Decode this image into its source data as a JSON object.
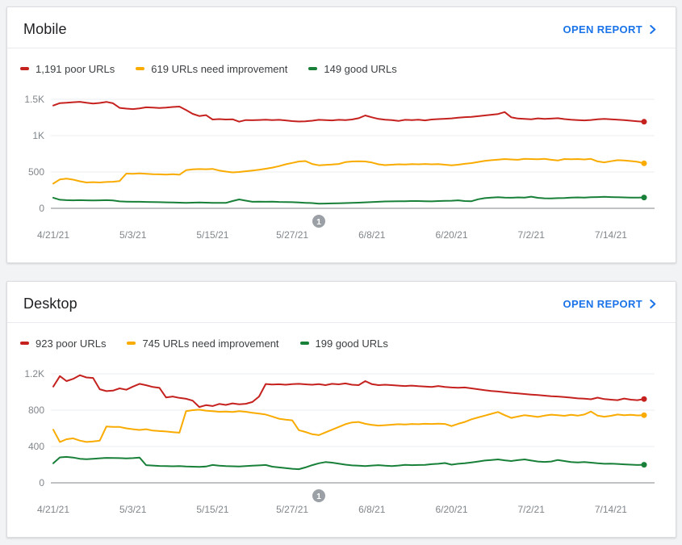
{
  "page": {
    "background": "#f1f3f4"
  },
  "colors": {
    "poor": "#c5221f",
    "needs_improvement": "#f9ab00",
    "good": "#188038",
    "link": "#1a73e8",
    "axis_text": "#80868b",
    "gridline": "#ebedef",
    "baseline": "#80868b",
    "badge": "#9aa0a6"
  },
  "cards": [
    {
      "title": "Mobile",
      "open_report_label": "OPEN REPORT",
      "legend": [
        {
          "label": "1,191 poor URLs",
          "color": "#c5221f"
        },
        {
          "label": "619 URLs need improvement",
          "color": "#f9ab00"
        },
        {
          "label": "149 good URLs",
          "color": "#188038"
        }
      ],
      "chart_data": {
        "type": "line",
        "x_tick_labels": [
          "4/21/21",
          "5/3/21",
          "5/15/21",
          "5/27/21",
          "6/8/21",
          "6/20/21",
          "7/2/21",
          "7/14/21"
        ],
        "x_tick_day_offsets": [
          0,
          12,
          24,
          36,
          48,
          60,
          72,
          84
        ],
        "x_days_span": 89,
        "y_tick_labels": [
          "0",
          "500",
          "1K",
          "1.5K"
        ],
        "ylim": [
          0,
          1500
        ],
        "grid": "horizontal",
        "legend_position": "top",
        "annotation_badge": {
          "label": "1",
          "day_index": 40
        },
        "series": [
          {
            "name": "poor URLs",
            "color": "#c5221f",
            "current": 1191,
            "values": [
              1415,
              1448,
              1452,
              1460,
              1466,
              1452,
              1442,
              1450,
              1464,
              1445,
              1382,
              1372,
              1366,
              1376,
              1390,
              1386,
              1380,
              1386,
              1394,
              1400,
              1352,
              1300,
              1270,
              1282,
              1222,
              1228,
              1222,
              1226,
              1192,
              1214,
              1212,
              1216,
              1220,
              1214,
              1218,
              1210,
              1200,
              1194,
              1198,
              1206,
              1218,
              1214,
              1210,
              1218,
              1214,
              1222,
              1240,
              1278,
              1252,
              1230,
              1220,
              1214,
              1202,
              1218,
              1214,
              1220,
              1210,
              1222,
              1228,
              1232,
              1238,
              1248,
              1254,
              1258,
              1268,
              1278,
              1288,
              1298,
              1325,
              1252,
              1236,
              1230,
              1226,
              1238,
              1230,
              1234,
              1240,
              1228,
              1220,
              1214,
              1210,
              1216,
              1224,
              1230,
              1224,
              1220,
              1214,
              1206,
              1198,
              1191
            ]
          },
          {
            "name": "URLs need improvement",
            "color": "#f9ab00",
            "current": 619,
            "values": [
              340,
              398,
              408,
              394,
              372,
              356,
              360,
              356,
              362,
              366,
              376,
              478,
              474,
              480,
              476,
              470,
              468,
              464,
              470,
              462,
              525,
              535,
              540,
              538,
              542,
              520,
              505,
              495,
              500,
              510,
              520,
              530,
              545,
              560,
              580,
              605,
              625,
              645,
              650,
              610,
              592,
              598,
              602,
              610,
              635,
              645,
              648,
              645,
              630,
              605,
              595,
              600,
              605,
              602,
              608,
              605,
              610,
              605,
              608,
              600,
              592,
              600,
              612,
              622,
              638,
              652,
              662,
              670,
              678,
              672,
              668,
              680,
              678,
              674,
              680,
              668,
              658,
              678,
              674,
              678,
              672,
              680,
              646,
              632,
              648,
              662,
              658,
              650,
              640,
              619
            ]
          },
          {
            "name": "good URLs",
            "color": "#188038",
            "current": 149,
            "values": [
              145,
              118,
              112,
              110,
              112,
              110,
              108,
              110,
              112,
              108,
              96,
              92,
              90,
              90,
              88,
              86,
              84,
              82,
              80,
              78,
              76,
              78,
              80,
              78,
              76,
              75,
              74,
              100,
              122,
              106,
              90,
              92,
              90,
              92,
              88,
              86,
              84,
              80,
              76,
              72,
              65,
              66,
              68,
              70,
              72,
              75,
              78,
              82,
              86,
              90,
              94,
              96,
              98,
              98,
              100,
              100,
              98,
              96,
              100,
              103,
              105,
              110,
              100,
              98,
              124,
              140,
              148,
              152,
              148,
              145,
              150,
              148,
              160,
              144,
              138,
              136,
              140,
              142,
              148,
              150,
              148,
              152,
              155,
              158,
              155,
              152,
              150,
              148,
              148,
              149
            ]
          }
        ]
      }
    },
    {
      "title": "Desktop",
      "open_report_label": "OPEN REPORT",
      "legend": [
        {
          "label": "923 poor URLs",
          "color": "#c5221f"
        },
        {
          "label": "745 URLs need improvement",
          "color": "#f9ab00"
        },
        {
          "label": "199 good URLs",
          "color": "#188038"
        }
      ],
      "chart_data": {
        "type": "line",
        "x_tick_labels": [
          "4/21/21",
          "5/3/21",
          "5/15/21",
          "5/27/21",
          "6/8/21",
          "6/20/21",
          "7/2/21",
          "7/14/21"
        ],
        "x_tick_day_offsets": [
          0,
          12,
          24,
          36,
          48,
          60,
          72,
          84
        ],
        "x_days_span": 89,
        "y_tick_labels": [
          "0",
          "400",
          "800",
          "1.2K"
        ],
        "ylim": [
          0,
          1200
        ],
        "grid": "horizontal",
        "legend_position": "top",
        "annotation_badge": {
          "label": "1",
          "day_index": 40
        },
        "series": [
          {
            "name": "poor URLs",
            "color": "#c5221f",
            "current": 923,
            "values": [
              1060,
              1175,
              1120,
              1145,
              1185,
              1160,
              1155,
              1030,
              1010,
              1015,
              1040,
              1025,
              1060,
              1090,
              1075,
              1055,
              1045,
              940,
              950,
              935,
              925,
              905,
              835,
              855,
              845,
              868,
              858,
              875,
              865,
              870,
              890,
              950,
              1088,
              1082,
              1085,
              1080,
              1086,
              1090,
              1084,
              1080,
              1086,
              1076,
              1090,
              1084,
              1094,
              1080,
              1076,
              1120,
              1086,
              1076,
              1080,
              1076,
              1070,
              1066,
              1070,
              1064,
              1060,
              1056,
              1066,
              1056,
              1050,
              1046,
              1050,
              1040,
              1030,
              1020,
              1012,
              1005,
              998,
              990,
              985,
              978,
              972,
              966,
              960,
              954,
              950,
              944,
              938,
              930,
              926,
              920,
              938,
              922,
              916,
              910,
              928,
              916,
              910,
              923
            ]
          },
          {
            "name": "URLs need improvement",
            "color": "#f9ab00",
            "current": 745,
            "values": [
              585,
              450,
              480,
              490,
              465,
              450,
              455,
              465,
              620,
              615,
              615,
              600,
              590,
              582,
              590,
              575,
              570,
              565,
              558,
              552,
              788,
              800,
              805,
              795,
              788,
              782,
              785,
              780,
              788,
              782,
              772,
              762,
              752,
              730,
              706,
              695,
              688,
              580,
              560,
              535,
              525,
              555,
              585,
              615,
              645,
              665,
              670,
              650,
              638,
              630,
              635,
              640,
              645,
              642,
              648,
              645,
              650,
              648,
              652,
              648,
              625,
              650,
              670,
              700,
              720,
              740,
              760,
              780,
              745,
              715,
              730,
              745,
              735,
              725,
              740,
              750,
              745,
              738,
              748,
              740,
              752,
              785,
              740,
              728,
              738,
              752,
              745,
              748,
              742,
              745
            ]
          },
          {
            "name": "good URLs",
            "color": "#188038",
            "current": 199,
            "values": [
              215,
              280,
              285,
              278,
              265,
              260,
              265,
              270,
              275,
              273,
              272,
              268,
              272,
              278,
              195,
              190,
              186,
              184,
              182,
              185,
              180,
              178,
              175,
              180,
              196,
              188,
              184,
              182,
              180,
              184,
              188,
              192,
              196,
              178,
              170,
              162,
              155,
              150,
              170,
              195,
              215,
              228,
              222,
              212,
              200,
              192,
              188,
              185,
              190,
              195,
              188,
              185,
              190,
              198,
              195,
              196,
              198,
              205,
              210,
              218,
              200,
              210,
              215,
              225,
              235,
              245,
              252,
              258,
              248,
              240,
              250,
              258,
              245,
              235,
              230,
              235,
              252,
              240,
              228,
              225,
              228,
              222,
              215,
              210,
              212,
              208,
              204,
              200,
              196,
              199
            ]
          }
        ]
      }
    }
  ]
}
